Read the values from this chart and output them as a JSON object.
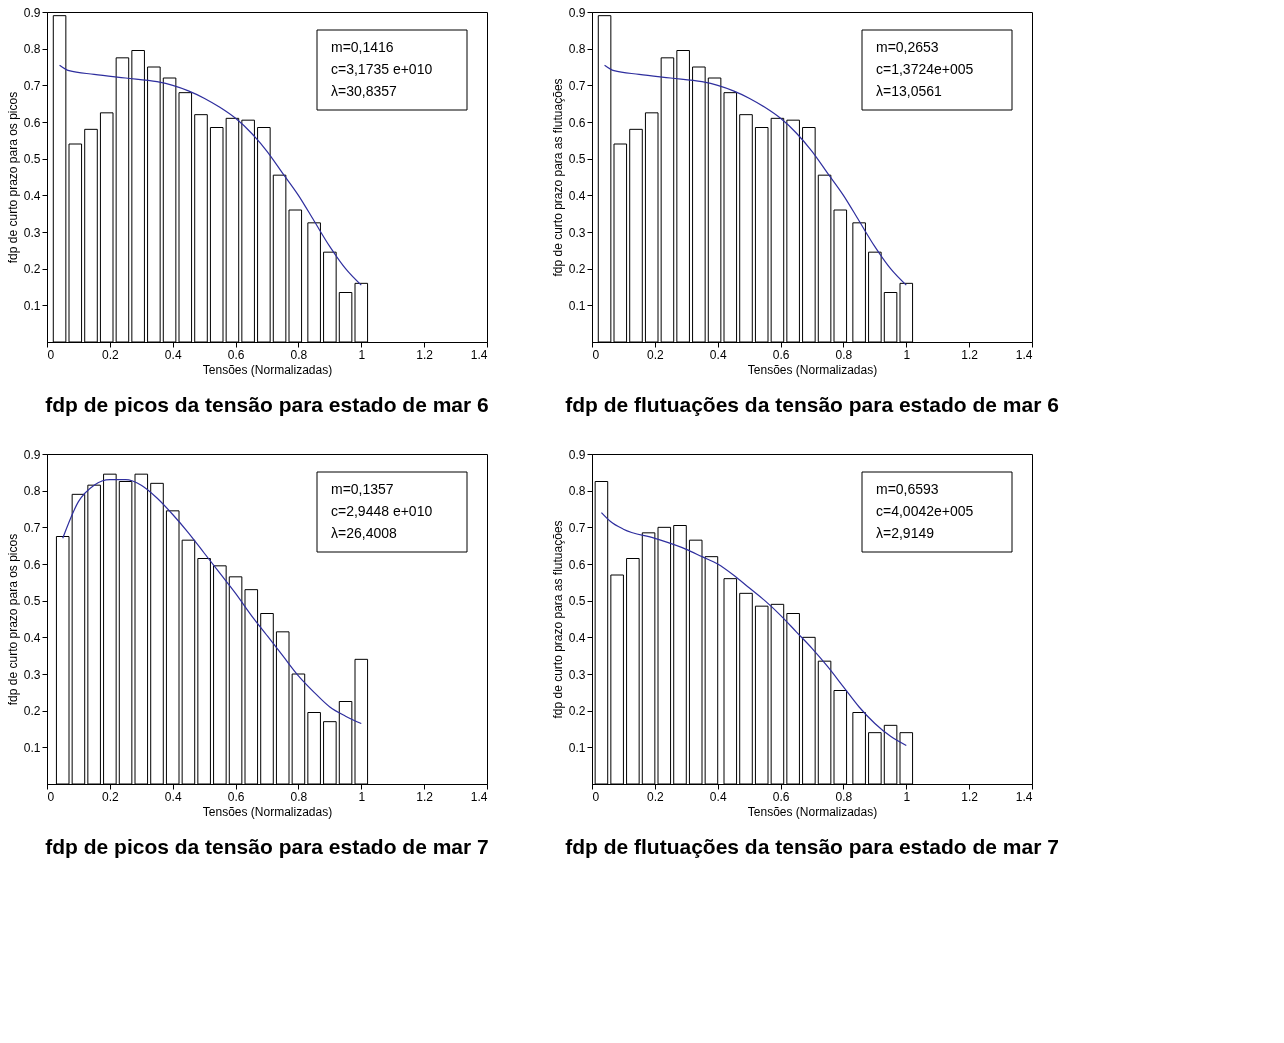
{
  "chart_data": [
    {
      "type": "bar",
      "title": "fdp de picos da tensão para estado de mar 6",
      "xlabel": "Tensões (Normalizadas)",
      "ylabel": "fdp de curto prazo para os picos",
      "xlim": [
        0,
        1.4
      ],
      "ylim": [
        0,
        0.9
      ],
      "xticks": [
        0,
        0.2,
        0.4,
        0.6,
        0.8,
        1,
        1.2,
        1.4
      ],
      "yticks": [
        0.1,
        0.2,
        0.3,
        0.4,
        0.5,
        0.6,
        0.7,
        0.8,
        0.9
      ],
      "grid": false,
      "annotations": [
        "m=0,1416",
        "c=3,1735 e+010",
        "λ=30,8357"
      ],
      "x": [
        0.04,
        0.09,
        0.14,
        0.19,
        0.24,
        0.29,
        0.34,
        0.39,
        0.44,
        0.49,
        0.54,
        0.59,
        0.64,
        0.69,
        0.74,
        0.79,
        0.85,
        0.9,
        0.95,
        1.0
      ],
      "series": [
        {
          "color": "#ffffff",
          "values": [
            0.89,
            0.54,
            0.58,
            0.625,
            0.775,
            0.795,
            0.75,
            0.72,
            0.68,
            0.62,
            0.585,
            0.61,
            0.605,
            0.585,
            0.455,
            0.36,
            0.325,
            0.245,
            0.135,
            0.16
          ]
        },
        {
          "type": "line",
          "color": "#2e2e9e",
          "x": [
            0.04,
            0.07,
            0.15,
            0.25,
            0.35,
            0.4,
            0.45,
            0.5,
            0.55,
            0.6,
            0.65,
            0.7,
            0.75,
            0.8,
            0.85,
            0.9,
            0.95,
            1.0
          ],
          "values": [
            0.755,
            0.74,
            0.73,
            0.72,
            0.71,
            0.7,
            0.685,
            0.665,
            0.64,
            0.61,
            0.57,
            0.52,
            0.46,
            0.4,
            0.33,
            0.26,
            0.2,
            0.155
          ]
        }
      ]
    },
    {
      "type": "bar",
      "title": "fdp de flutuações da tensão para estado de mar 6",
      "xlabel": "Tensões (Normalizadas)",
      "ylabel": "fdp de curto prazo para as flutuações",
      "xlim": [
        0,
        1.4
      ],
      "ylim": [
        0,
        0.9
      ],
      "xticks": [
        0,
        0.2,
        0.4,
        0.6,
        0.8,
        1,
        1.2,
        1.4
      ],
      "yticks": [
        0.1,
        0.2,
        0.3,
        0.4,
        0.5,
        0.6,
        0.7,
        0.8,
        0.9
      ],
      "grid": false,
      "annotations": [
        "m=0,2653",
        "c=1,3724e+005",
        "λ=13,0561"
      ],
      "x": [
        0.04,
        0.09,
        0.14,
        0.19,
        0.24,
        0.29,
        0.34,
        0.39,
        0.44,
        0.49,
        0.54,
        0.59,
        0.64,
        0.69,
        0.74,
        0.79,
        0.85,
        0.9,
        0.95,
        1.0
      ],
      "series": [
        {
          "color": "#ffffff",
          "values": [
            0.89,
            0.54,
            0.58,
            0.625,
            0.775,
            0.795,
            0.75,
            0.72,
            0.68,
            0.62,
            0.585,
            0.61,
            0.605,
            0.585,
            0.455,
            0.36,
            0.325,
            0.245,
            0.135,
            0.16
          ]
        },
        {
          "type": "line",
          "color": "#2e2e9e",
          "x": [
            0.04,
            0.07,
            0.15,
            0.25,
            0.35,
            0.4,
            0.45,
            0.5,
            0.55,
            0.6,
            0.65,
            0.7,
            0.75,
            0.8,
            0.85,
            0.9,
            0.95,
            1.0
          ],
          "values": [
            0.755,
            0.74,
            0.73,
            0.72,
            0.71,
            0.7,
            0.685,
            0.665,
            0.64,
            0.61,
            0.57,
            0.52,
            0.46,
            0.4,
            0.33,
            0.26,
            0.2,
            0.155
          ]
        }
      ]
    },
    {
      "type": "bar",
      "title": "fdp de picos da tensão para estado de mar 7",
      "xlabel": "Tensões (Normalizadas)",
      "ylabel": "fdp de curto prazo para os picos",
      "xlim": [
        0,
        1.4
      ],
      "ylim": [
        0,
        0.9
      ],
      "xticks": [
        0,
        0.2,
        0.4,
        0.6,
        0.8,
        1,
        1.2,
        1.4
      ],
      "yticks": [
        0.1,
        0.2,
        0.3,
        0.4,
        0.5,
        0.6,
        0.7,
        0.8,
        0.9
      ],
      "grid": false,
      "annotations": [
        "m=0,1357",
        "c=2,9448 e+010",
        "λ=26,4008"
      ],
      "x": [
        0.05,
        0.1,
        0.15,
        0.2,
        0.25,
        0.3,
        0.35,
        0.4,
        0.45,
        0.5,
        0.55,
        0.6,
        0.65,
        0.7,
        0.75,
        0.8,
        0.85,
        0.9,
        0.95,
        1.0
      ],
      "series": [
        {
          "color": "#ffffff",
          "values": [
            0.675,
            0.79,
            0.815,
            0.845,
            0.825,
            0.845,
            0.82,
            0.745,
            0.665,
            0.615,
            0.595,
            0.565,
            0.53,
            0.465,
            0.415,
            0.3,
            0.195,
            0.17,
            0.225,
            0.34
          ]
        },
        {
          "type": "line",
          "color": "#2e2e9e",
          "x": [
            0.05,
            0.1,
            0.15,
            0.2,
            0.25,
            0.3,
            0.35,
            0.4,
            0.45,
            0.5,
            0.55,
            0.6,
            0.65,
            0.7,
            0.75,
            0.8,
            0.85,
            0.9,
            0.95,
            1.0
          ],
          "values": [
            0.67,
            0.77,
            0.815,
            0.83,
            0.83,
            0.815,
            0.78,
            0.735,
            0.685,
            0.63,
            0.575,
            0.52,
            0.46,
            0.405,
            0.35,
            0.295,
            0.25,
            0.21,
            0.185,
            0.165
          ]
        }
      ]
    },
    {
      "type": "bar",
      "title": "fdp de flutuações da tensão para estado de mar 7",
      "xlabel": "Tensões (Normalizadas)",
      "ylabel": "fdp de curto prazo para as flutuações",
      "xlim": [
        0,
        1.4
      ],
      "ylim": [
        0,
        0.9
      ],
      "xticks": [
        0,
        0.2,
        0.4,
        0.6,
        0.8,
        1,
        1.2,
        1.4
      ],
      "yticks": [
        0.1,
        0.2,
        0.3,
        0.4,
        0.5,
        0.6,
        0.7,
        0.8,
        0.9
      ],
      "grid": false,
      "annotations": [
        "m=0,6593",
        "c=4,0042e+005",
        "λ=2,9149"
      ],
      "x": [
        0.03,
        0.08,
        0.13,
        0.18,
        0.23,
        0.28,
        0.33,
        0.38,
        0.44,
        0.49,
        0.54,
        0.59,
        0.64,
        0.69,
        0.74,
        0.79,
        0.85,
        0.9,
        0.95,
        1.0
      ],
      "series": [
        {
          "color": "#ffffff",
          "values": [
            0.825,
            0.57,
            0.615,
            0.685,
            0.7,
            0.705,
            0.665,
            0.62,
            0.56,
            0.52,
            0.485,
            0.49,
            0.465,
            0.4,
            0.335,
            0.255,
            0.195,
            0.14,
            0.16,
            0.14
          ]
        },
        {
          "type": "line",
          "color": "#2e2e9e",
          "x": [
            0.03,
            0.06,
            0.1,
            0.2,
            0.3,
            0.35,
            0.4,
            0.45,
            0.5,
            0.55,
            0.6,
            0.65,
            0.7,
            0.75,
            0.8,
            0.85,
            0.9,
            0.95,
            1.0
          ],
          "values": [
            0.74,
            0.715,
            0.695,
            0.67,
            0.64,
            0.62,
            0.6,
            0.57,
            0.535,
            0.5,
            0.46,
            0.415,
            0.37,
            0.32,
            0.265,
            0.21,
            0.165,
            0.13,
            0.105
          ]
        }
      ]
    }
  ]
}
